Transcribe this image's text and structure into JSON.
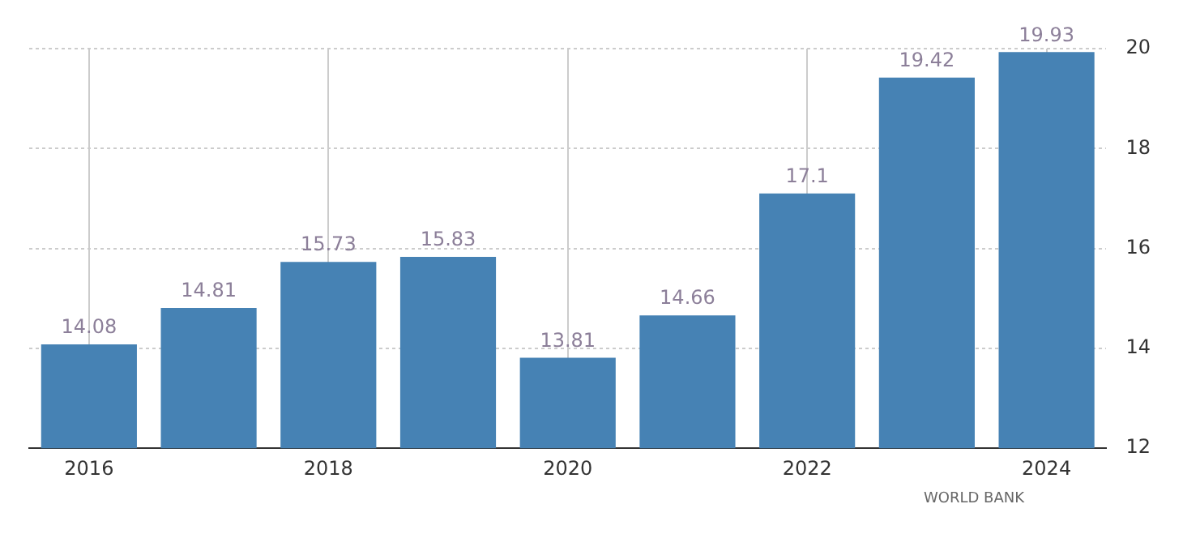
{
  "chart_data": {
    "type": "bar",
    "categories": [
      "2016",
      null,
      "2018",
      null,
      "2020",
      null,
      "2022",
      null,
      "2024"
    ],
    "values": [
      14.08,
      14.81,
      15.73,
      15.83,
      13.81,
      14.66,
      17.1,
      19.42,
      19.93
    ],
    "color": "#4682b4",
    "ylim": [
      12,
      20
    ],
    "yticks": [
      12,
      14,
      16,
      18,
      20
    ],
    "grid": true,
    "data_labels": true,
    "annotations": [
      "WORLD BANK"
    ]
  }
}
